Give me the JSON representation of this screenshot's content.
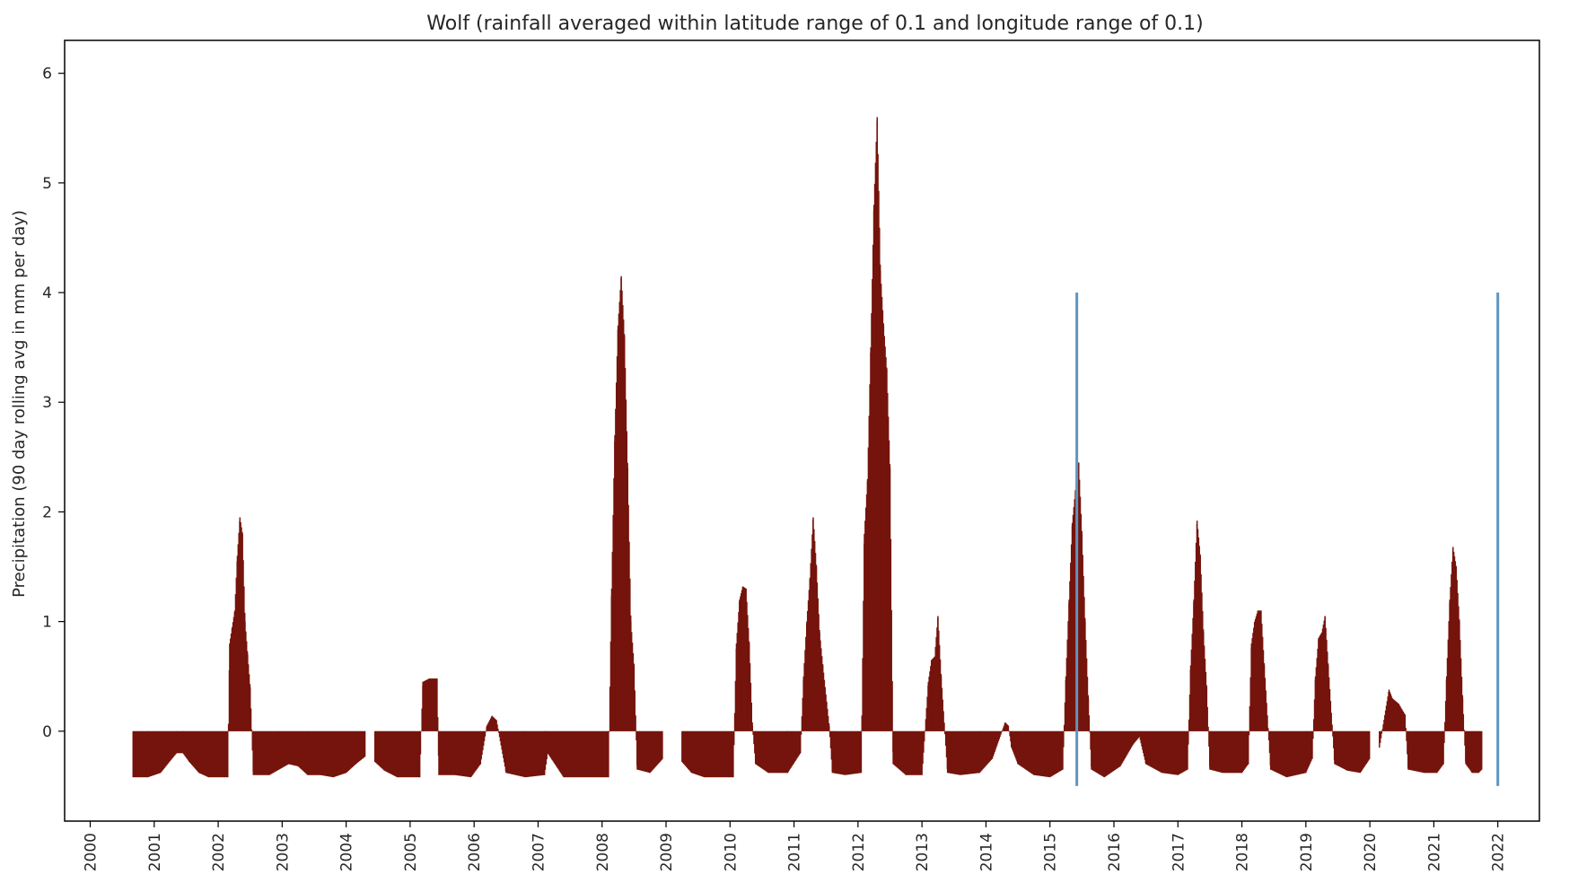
{
  "chart_data": {
    "type": "bar",
    "title": "Wolf (rainfall averaged within latitude range of 0.1 and longitude range of 0.1)",
    "xlabel": "",
    "ylabel": "Precipitation (90 day rolling avg in mm per day)",
    "xlim": [
      1999.6,
      2022.65
    ],
    "ylim": [
      -0.82,
      6.3
    ],
    "grid": false,
    "x_ticks": [
      "2000",
      "2001",
      "2002",
      "2003",
      "2004",
      "2005",
      "2006",
      "2007",
      "2008",
      "2009",
      "2010",
      "2011",
      "2012",
      "2013",
      "2014",
      "2015",
      "2016",
      "2017",
      "2018",
      "2019",
      "2020",
      "2021",
      "2022"
    ],
    "y_ticks": [
      "0",
      "1",
      "2",
      "3",
      "4",
      "5",
      "6"
    ],
    "bar_color": "#75140c",
    "vline_color": "#5f95c0",
    "vlines": [
      {
        "x": 2015.42,
        "ymin": -0.5,
        "ymax": 4.0
      },
      {
        "x": 2022.0,
        "ymin": -0.5,
        "ymax": 4.0
      }
    ],
    "series": [
      {
        "points": [
          [
            2000.67,
            -0.42
          ],
          [
            2000.9,
            -0.42
          ],
          [
            2001.1,
            -0.38
          ],
          [
            2001.25,
            -0.27
          ],
          [
            2001.35,
            -0.2
          ],
          [
            2001.45,
            -0.2
          ],
          [
            2001.55,
            -0.28
          ],
          [
            2001.7,
            -0.38
          ],
          [
            2001.85,
            -0.42
          ],
          [
            2002.15,
            -0.42
          ],
          [
            2002.18,
            0.8
          ],
          [
            2002.22,
            0.95
          ],
          [
            2002.26,
            1.1
          ],
          [
            2002.3,
            1.6
          ],
          [
            2002.34,
            1.95
          ],
          [
            2002.38,
            1.8
          ],
          [
            2002.42,
            1.0
          ],
          [
            2002.46,
            0.7
          ],
          [
            2002.5,
            0.4
          ],
          [
            2002.55,
            -0.4
          ],
          [
            2002.8,
            -0.4
          ],
          [
            2002.95,
            -0.35
          ],
          [
            2003.1,
            -0.3
          ],
          [
            2003.25,
            -0.32
          ],
          [
            2003.4,
            -0.4
          ],
          [
            2003.6,
            -0.4
          ],
          [
            2003.8,
            -0.42
          ],
          [
            2004.0,
            -0.38
          ],
          [
            2004.15,
            -0.3
          ],
          [
            2004.3,
            -0.23
          ],
          [
            2004.45,
            -0.28
          ],
          [
            2004.6,
            -0.36
          ],
          [
            2004.8,
            -0.42
          ],
          [
            2005.15,
            -0.42
          ],
          [
            2005.2,
            0.45
          ],
          [
            2005.3,
            0.48
          ],
          [
            2005.42,
            0.48
          ],
          [
            2005.45,
            -0.4
          ],
          [
            2005.7,
            -0.4
          ],
          [
            2005.95,
            -0.42
          ],
          [
            2006.1,
            -0.3
          ],
          [
            2006.2,
            0.05
          ],
          [
            2006.28,
            0.14
          ],
          [
            2006.35,
            0.1
          ],
          [
            2006.5,
            -0.38
          ],
          [
            2006.8,
            -0.42
          ],
          [
            2007.1,
            -0.4
          ],
          [
            2007.15,
            -0.2
          ],
          [
            2007.4,
            -0.42
          ],
          [
            2008.1,
            -0.42
          ],
          [
            2008.15,
            1.3
          ],
          [
            2008.2,
            2.7
          ],
          [
            2008.25,
            3.7
          ],
          [
            2008.3,
            4.15
          ],
          [
            2008.35,
            3.6
          ],
          [
            2008.4,
            2.4
          ],
          [
            2008.45,
            1.0
          ],
          [
            2008.5,
            0.6
          ],
          [
            2008.55,
            -0.35
          ],
          [
            2008.75,
            -0.38
          ],
          [
            2008.95,
            -0.25
          ],
          [
            2009.1,
            -0.15
          ],
          [
            2009.25,
            -0.28
          ],
          [
            2009.4,
            -0.38
          ],
          [
            2009.6,
            -0.42
          ],
          [
            2010.05,
            -0.42
          ],
          [
            2010.1,
            0.8
          ],
          [
            2010.15,
            1.2
          ],
          [
            2010.2,
            1.32
          ],
          [
            2010.25,
            1.3
          ],
          [
            2010.3,
            0.8
          ],
          [
            2010.35,
            0.05
          ],
          [
            2010.4,
            -0.3
          ],
          [
            2010.6,
            -0.38
          ],
          [
            2010.9,
            -0.38
          ],
          [
            2011.1,
            -0.2
          ],
          [
            2011.15,
            0.5
          ],
          [
            2011.2,
            1.0
          ],
          [
            2011.25,
            1.4
          ],
          [
            2011.3,
            1.95
          ],
          [
            2011.35,
            1.5
          ],
          [
            2011.4,
            0.9
          ],
          [
            2011.45,
            0.6
          ],
          [
            2011.55,
            0.05
          ],
          [
            2011.6,
            -0.38
          ],
          [
            2011.8,
            -0.4
          ],
          [
            2012.05,
            -0.38
          ],
          [
            2012.1,
            1.8
          ],
          [
            2012.15,
            2.3
          ],
          [
            2012.2,
            3.5
          ],
          [
            2012.25,
            4.8
          ],
          [
            2012.3,
            5.6
          ],
          [
            2012.35,
            4.2
          ],
          [
            2012.4,
            3.7
          ],
          [
            2012.45,
            3.3
          ],
          [
            2012.5,
            2.4
          ],
          [
            2012.55,
            -0.3
          ],
          [
            2012.75,
            -0.4
          ],
          [
            2013.0,
            -0.4
          ],
          [
            2013.1,
            0.45
          ],
          [
            2013.15,
            0.65
          ],
          [
            2013.2,
            0.68
          ],
          [
            2013.25,
            1.05
          ],
          [
            2013.3,
            0.5
          ],
          [
            2013.4,
            -0.38
          ],
          [
            2013.6,
            -0.4
          ],
          [
            2013.9,
            -0.38
          ],
          [
            2014.1,
            -0.25
          ],
          [
            2014.3,
            0.08
          ],
          [
            2014.35,
            0.05
          ],
          [
            2014.4,
            -0.15
          ],
          [
            2014.5,
            -0.3
          ],
          [
            2014.75,
            -0.4
          ],
          [
            2015.0,
            -0.42
          ],
          [
            2015.2,
            -0.35
          ],
          [
            2015.25,
            0.5
          ],
          [
            2015.3,
            1.2
          ],
          [
            2015.35,
            1.9
          ],
          [
            2015.4,
            2.2
          ],
          [
            2015.45,
            2.45
          ],
          [
            2015.5,
            1.8
          ],
          [
            2015.55,
            1.0
          ],
          [
            2015.6,
            0.3
          ],
          [
            2015.65,
            -0.35
          ],
          [
            2015.85,
            -0.42
          ],
          [
            2016.1,
            -0.32
          ],
          [
            2016.3,
            -0.12
          ],
          [
            2016.4,
            -0.05
          ],
          [
            2016.5,
            -0.3
          ],
          [
            2016.75,
            -0.38
          ],
          [
            2017.0,
            -0.4
          ],
          [
            2017.15,
            -0.35
          ],
          [
            2017.2,
            0.6
          ],
          [
            2017.25,
            1.2
          ],
          [
            2017.3,
            1.92
          ],
          [
            2017.35,
            1.6
          ],
          [
            2017.4,
            0.9
          ],
          [
            2017.45,
            0.4
          ],
          [
            2017.5,
            -0.35
          ],
          [
            2017.7,
            -0.38
          ],
          [
            2018.0,
            -0.38
          ],
          [
            2018.1,
            -0.3
          ],
          [
            2018.15,
            0.8
          ],
          [
            2018.2,
            1.0
          ],
          [
            2018.25,
            1.1
          ],
          [
            2018.3,
            1.1
          ],
          [
            2018.35,
            0.6
          ],
          [
            2018.45,
            -0.35
          ],
          [
            2018.7,
            -0.42
          ],
          [
            2019.0,
            -0.38
          ],
          [
            2019.1,
            -0.25
          ],
          [
            2019.15,
            0.5
          ],
          [
            2019.2,
            0.85
          ],
          [
            2019.25,
            0.9
          ],
          [
            2019.3,
            1.05
          ],
          [
            2019.35,
            0.6
          ],
          [
            2019.45,
            -0.3
          ],
          [
            2019.65,
            -0.36
          ],
          [
            2019.85,
            -0.38
          ],
          [
            2020.0,
            -0.25
          ],
          [
            2020.15,
            -0.15
          ],
          [
            2020.3,
            0.38
          ],
          [
            2020.35,
            0.3
          ],
          [
            2020.45,
            0.25
          ],
          [
            2020.55,
            0.15
          ],
          [
            2020.6,
            -0.35
          ],
          [
            2020.85,
            -0.38
          ],
          [
            2021.05,
            -0.38
          ],
          [
            2021.15,
            -0.3
          ],
          [
            2021.2,
            0.5
          ],
          [
            2021.25,
            1.2
          ],
          [
            2021.3,
            1.68
          ],
          [
            2021.35,
            1.5
          ],
          [
            2021.4,
            1.0
          ],
          [
            2021.45,
            0.3
          ],
          [
            2021.5,
            -0.3
          ],
          [
            2021.6,
            -0.38
          ],
          [
            2021.7,
            -0.38
          ],
          [
            2021.75,
            -0.35
          ]
        ]
      }
    ]
  }
}
